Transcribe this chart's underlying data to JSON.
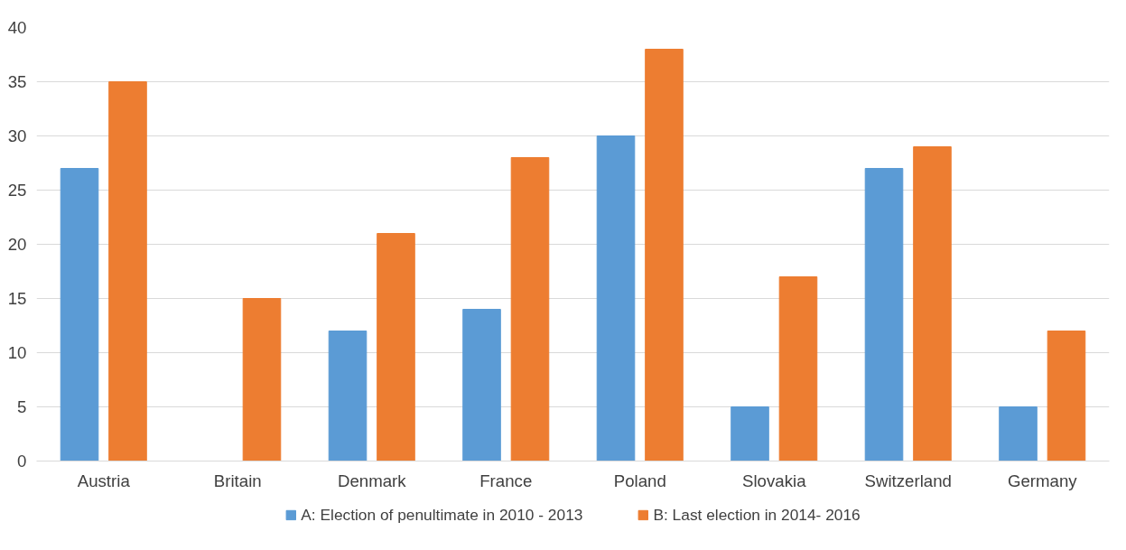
{
  "chart_data": {
    "type": "bar",
    "categories": [
      "Austria",
      "Britain",
      "Denmark",
      "France",
      "Poland",
      "Slovakia",
      "Switzerland",
      "Germany"
    ],
    "series": [
      {
        "name": "A: Election of penultimate in 2010 - 2013",
        "color": "#5b9bd5",
        "values": [
          27,
          null,
          12,
          14,
          30,
          5,
          27,
          5
        ]
      },
      {
        "name": "B: Last election in 2014- 2016",
        "color": "#ed7d31",
        "values": [
          35,
          15,
          21,
          28,
          38,
          17,
          29,
          12
        ]
      }
    ],
    "ylim": [
      0,
      40
    ],
    "yticks": [
      0,
      5,
      10,
      15,
      20,
      25,
      30,
      35,
      40
    ],
    "grid": "y",
    "legend": "bottom"
  }
}
